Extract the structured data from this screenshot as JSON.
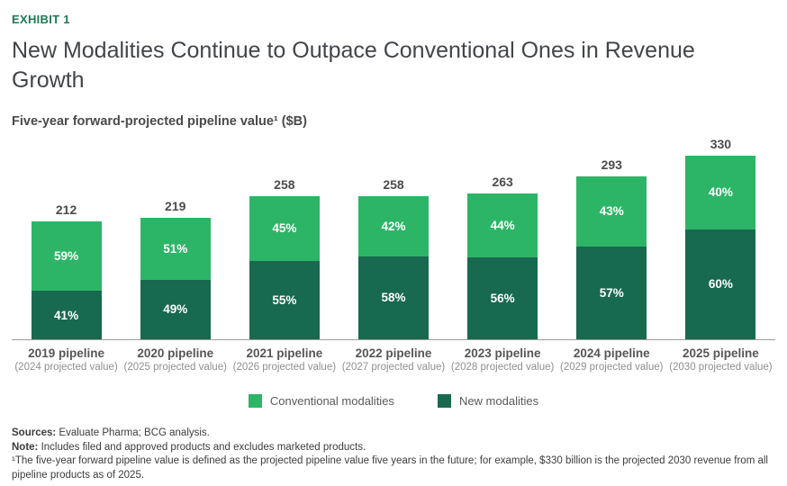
{
  "exhibit_label": "EXHIBIT 1",
  "title": "New Modalities Continue to Outpace Conventional Ones in Revenue Growth",
  "subtitle": "Five-year forward-projected pipeline value¹ ($B)",
  "colors": {
    "conventional_green": "#2DB567",
    "new_modalities_green": "#17694F",
    "exhibit_green": "#1C7A55"
  },
  "chart_data": {
    "type": "bar",
    "stacked": true,
    "title": "Five-year forward-projected pipeline value¹ ($B)",
    "xlabel": "",
    "ylabel": "",
    "unit": "$B",
    "grid": false,
    "categories": [
      "2019 pipeline",
      "2020 pipeline",
      "2021 pipeline",
      "2022 pipeline",
      "2023 pipeline",
      "2024 pipeline",
      "2025 pipeline"
    ],
    "sub_categories": [
      "(2024 projected value)",
      "(2025 projected value)",
      "(2026 projected value)",
      "(2027 projected value)",
      "(2028 projected value)",
      "(2029 projected value)",
      "(2030 projected value)"
    ],
    "totals": [
      212,
      219,
      258,
      258,
      263,
      293,
      330
    ],
    "series": [
      {
        "name": "Conventional modalities",
        "position": "top",
        "color": "#2DB567",
        "percent": [
          59,
          51,
          45,
          42,
          44,
          43,
          40
        ]
      },
      {
        "name": "New modalities",
        "position": "bottom",
        "color": "#17694F",
        "percent": [
          41,
          49,
          55,
          58,
          56,
          57,
          60
        ]
      }
    ]
  },
  "legend": [
    {
      "label": "Conventional modalities",
      "color": "#2DB567"
    },
    {
      "label": "New modalities",
      "color": "#17694F"
    }
  ],
  "footnotes": {
    "sources_label": "Sources:",
    "sources_text": " Evaluate Pharma; BCG analysis.",
    "note_label": "Note:",
    "note_text": " Includes filed and approved products and excludes marketed products.",
    "footnote1": "¹The five-year forward pipeline value is defined as the projected pipeline value five years in the future; for example, $330 billion is the projected 2030 revenue from all pipeline products as of 2025."
  }
}
